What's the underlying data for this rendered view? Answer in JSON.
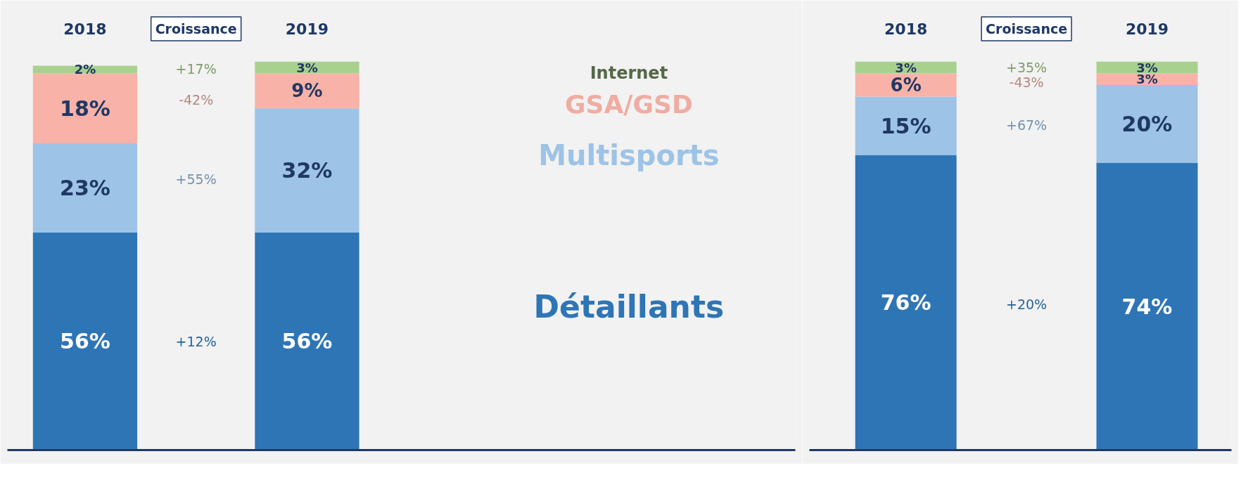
{
  "chart_data": [
    {
      "type": "bar",
      "stacked": true,
      "categories": [
        "2018",
        "2019"
      ],
      "tick_labels": "x",
      "grid": false,
      "legend": "right",
      "series": [
        {
          "name": "Détaillants",
          "color": "#2e75b6",
          "values": [
            56,
            56
          ],
          "value_labels": [
            "56%",
            "56%"
          ]
        },
        {
          "name": "Multisports",
          "color": "#9dc3e6",
          "values": [
            23,
            32
          ],
          "value_labels": [
            "23%",
            "32%"
          ]
        },
        {
          "name": "GSA/GSD",
          "color": "#f8b2a8",
          "values": [
            18,
            9
          ],
          "value_labels": [
            "18%",
            "9%"
          ]
        },
        {
          "name": "Internet",
          "color": "#a9d18e",
          "values": [
            2,
            3
          ],
          "value_labels": [
            "2%",
            "3%"
          ]
        }
      ],
      "annotations": [
        "Croissance",
        "+12%",
        "+55%",
        "-42%",
        "+17%"
      ]
    },
    {
      "type": "bar",
      "stacked": true,
      "categories": [
        "2018",
        "2019"
      ],
      "tick_labels": "x",
      "grid": false,
      "series": [
        {
          "color": "#2e75b6",
          "values": [
            76,
            74
          ],
          "value_labels": [
            "76%",
            "74%"
          ]
        },
        {
          "color": "#9dc3e6",
          "values": [
            15,
            20
          ],
          "value_labels": [
            "15%",
            "20%"
          ]
        },
        {
          "color": "#f8b2a8",
          "values": [
            6,
            3
          ],
          "value_labels": [
            "6%",
            "3%"
          ]
        },
        {
          "color": "#a9d18e",
          "values": [
            3,
            3
          ],
          "value_labels": [
            "3%",
            "3%"
          ]
        }
      ],
      "annotations": [
        "Croissance",
        "+20%",
        "+67%",
        "-43%",
        "+35%"
      ]
    }
  ]
}
